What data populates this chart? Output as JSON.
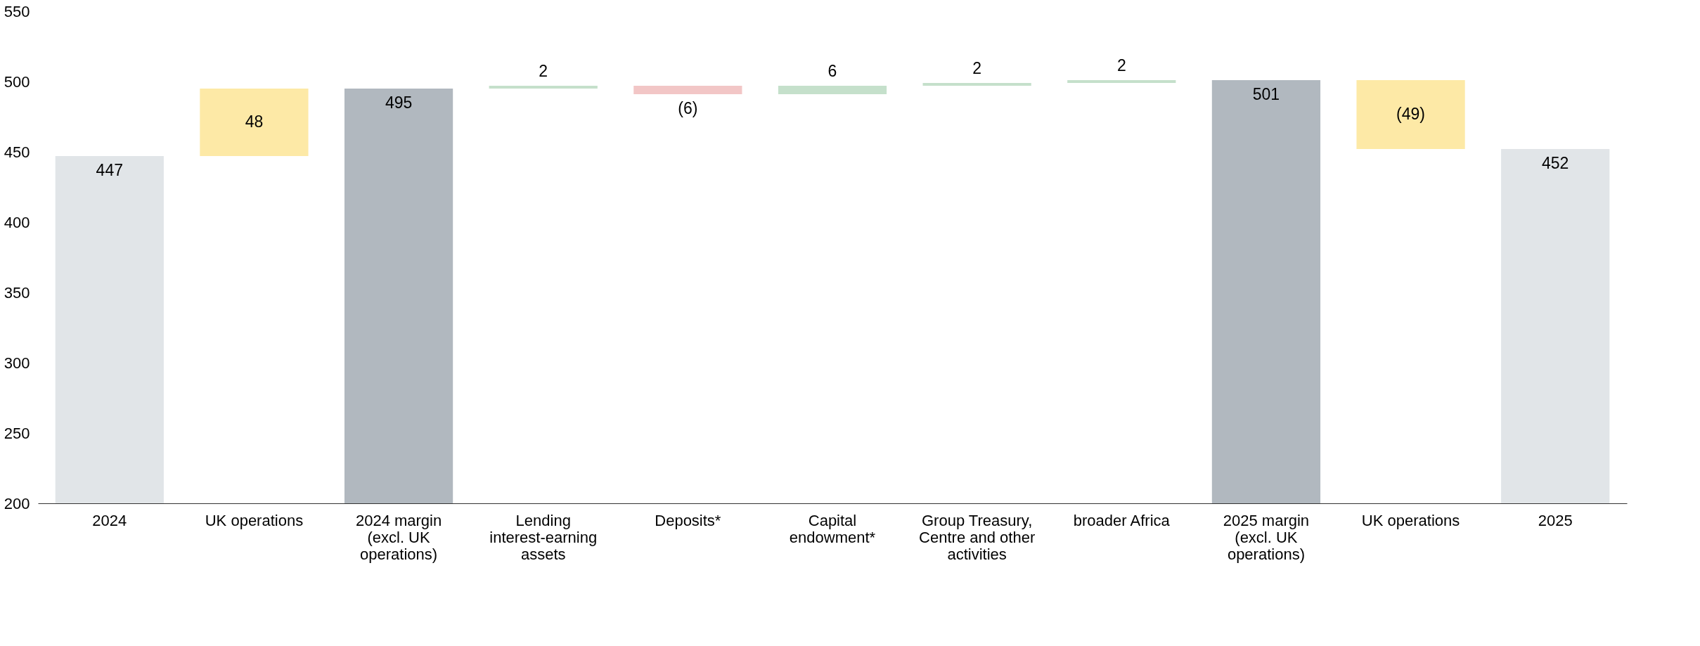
{
  "chart_data": {
    "type": "bar",
    "categories": [
      "2024",
      "UK operations",
      "2024 margin (excl. UK operations)",
      "Lending interest-earning assets",
      "Deposits*",
      "Capital endowment*",
      "Group Treasury, Centre and other activities",
      "broader Africa",
      "2025 margin (excl. UK operations)",
      "UK operations",
      "2025"
    ],
    "values": [
      447,
      48,
      495,
      2,
      -6,
      6,
      2,
      2,
      501,
      -49,
      452
    ],
    "base": [
      null,
      447,
      null,
      495,
      497,
      491,
      497,
      499,
      null,
      501,
      null
    ],
    "colors": [
      "#e1e5e8",
      "#fde9a6",
      "#b1b8bf",
      "#c5e0cb",
      "#f2c6c6",
      "#c5e0cb",
      "#c5e0cb",
      "#c5e0cb",
      "#b1b8bf",
      "#fde9a6",
      "#e1e5e8"
    ],
    "value_labels": [
      "447",
      "48",
      "495",
      "2",
      "(6)",
      "6",
      "2",
      "2",
      "501",
      "(49)",
      "452"
    ],
    "ylim": [
      200,
      550
    ],
    "yticks": [
      200,
      250,
      300,
      350,
      400,
      450,
      500,
      550
    ],
    "grid": false
  }
}
